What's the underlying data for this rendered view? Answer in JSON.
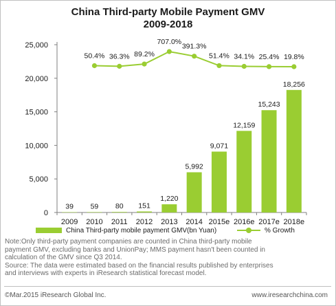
{
  "chart_data": {
    "type": "bar",
    "title": "China Third-party Mobile Payment GMV",
    "subtitle": "2009-2018",
    "categories": [
      "2009",
      "2010",
      "2011",
      "2012",
      "2013",
      "2014",
      "2015e",
      "2016e",
      "2017e",
      "2018e"
    ],
    "series": [
      {
        "name": "China Third-party mobile payment GMV(bn Yuan)",
        "type": "bar",
        "axis": "left",
        "color": "#9acd32",
        "values": [
          39,
          59,
          80,
          151,
          1220,
          5992,
          9071,
          12159,
          15243,
          18256
        ],
        "labels": [
          "39",
          "59",
          "80",
          "151",
          "1,220",
          "5,992",
          "9,071",
          "12,159",
          "15,243",
          "18,256"
        ]
      },
      {
        "name": "% Growth",
        "type": "line",
        "axis": "right",
        "color": "#9acd32",
        "values": [
          null,
          50.4,
          36.3,
          89.2,
          707.0,
          391.3,
          51.4,
          34.1,
          25.4,
          19.8
        ],
        "labels": [
          "",
          "50.4%",
          "36.3%",
          "89.2%",
          "707.0%",
          "391.3%",
          "51.4%",
          "34.1%",
          "25.4%",
          "19.8%"
        ]
      }
    ],
    "yticks": [
      "0",
      "5,000",
      "10,000",
      "15,000",
      "20,000",
      "25,000"
    ],
    "ylim": [
      0,
      25000
    ],
    "grid": false,
    "legend_placement": "bottom"
  },
  "note": [
    "Note:Only third-party payment companies are counted in China third-party mobile",
    "payment GMV, excluding banks and UnionPay;  MMS payment hasn't  been counted in",
    "calculation of the GMV since Q3 2014.",
    "Source: The data were estimated based on the financial results published by enterprises",
    "and interviews with experts  in iResearch statistical forecast model."
  ],
  "footer": {
    "copyright": "©Mar.2015 iResearch Global Inc.",
    "website": "www.iresearchchina.com"
  }
}
